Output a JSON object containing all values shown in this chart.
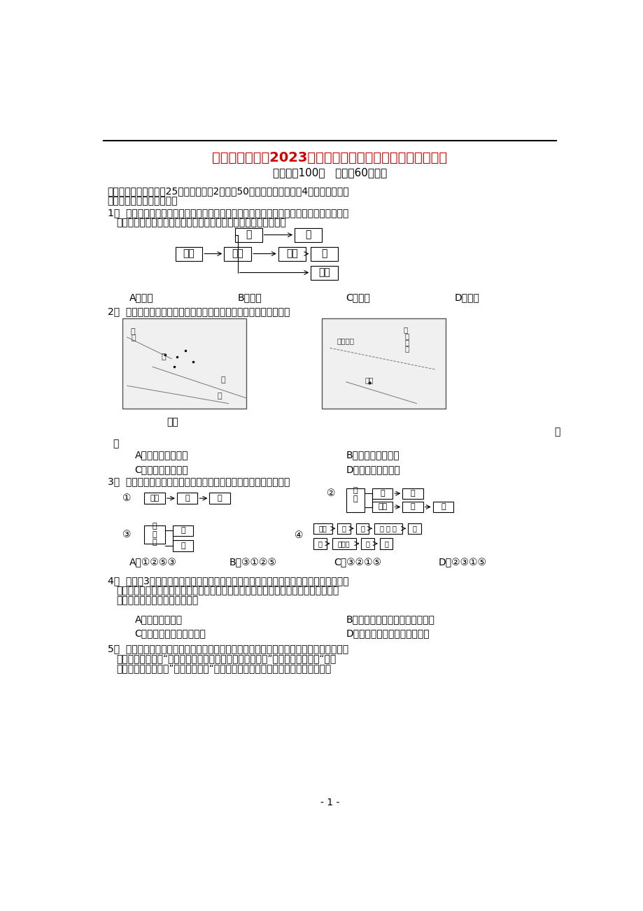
{
  "title": "甘肃省天水一中2023学年高一历史上学期第二学段考试试题",
  "subtitle": "（满分：100分   时间：60分钟）",
  "section1_a": "一、单选题（本大题共25小题，每小题2分，共50分。在每小题给出的4个选项中，只有",
  "section1_b": "一项是符合题目要求的。）",
  "q1_line1": "某同学在上大学先修课中国古代文化时，在周振鹤的《中国历代行政区划的变迁》一书",
  "q1_line2": "中看到如图，请问这幅行政区划图描述了哪个时期的地方行政制度",
  "q1_options": [
    "A．西周",
    "B．秦朝",
    "C．汉初",
    "D．元朝"
  ],
  "q2_text": "下图中，图一和图二标示的两个王朝实行的地方管理制度分别是",
  "q2_options": [
    "A．分封制与行省制",
    "B．郡县制与封国制",
    "C．分封制与刺史制",
    "D．郡县制与行省制"
  ],
  "q3_text": "下列中国古代主要行政区划的示意图，按出现时间排序正确的是",
  "q3_options": [
    "A．①②⑤③",
    "B．③①②⑤",
    "C．③②①⑤",
    "D．②③①⑤"
  ],
  "q4_line1": "公元前3世纪，罗马法规定：若某人非法杀死另一人的奴隶或牲畜，应当以去年奴隶或",
  "q4_line2": "牲畜的最高价格赔偿受害人；若某人非法损害了另一人的物品，应以近三年该物品的最",
  "q4_line3": "高价赔偿之。该规定说明罗马法",
  "q4_options": [
    "A．保护私有财产",
    "B．确保公民在法律面前人人平等",
    "C．扩大了罗马法统治基础",
    "D．注重维护商业交易的公平性"
  ],
  "q5_line1": "有一次陶片放逐法，雅典政界大人物阿里斯德岱斯到现场观看，被一个男人叫住，他递",
  "q5_line2": "上一枚陶片，说：“你能帮我写上阿里斯德岱斯的名字吗？”阿里斯德岱斯问：“你知",
  "q5_line3": "道他做了什么坏事？”那人回答说：“我都不知道他长得什么样，只是大家都在说他",
  "bg_color": "#ffffff",
  "text_color": "#000000",
  "title_color": "#cc0000",
  "page_num": "- 1 -"
}
